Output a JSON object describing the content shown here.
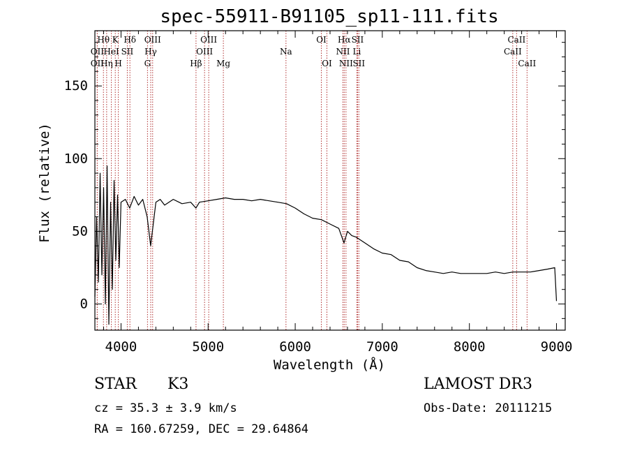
{
  "chart_data": {
    "type": "line",
    "title": "spec-55911-B91105_sp11-111.fits",
    "xlabel": "Wavelength (Å)",
    "ylabel": "Flux (relative)",
    "xlim": [
      3700,
      9100
    ],
    "ylim": [
      -18,
      188
    ],
    "xticks": [
      4000,
      5000,
      6000,
      7000,
      8000,
      9000
    ],
    "yticks": [
      0,
      50,
      100,
      150
    ],
    "spectrum": {
      "name": "flux",
      "x": [
        3700,
        3720,
        3740,
        3760,
        3780,
        3800,
        3820,
        3840,
        3860,
        3880,
        3900,
        3920,
        3940,
        3960,
        3980,
        4000,
        4050,
        4100,
        4150,
        4200,
        4250,
        4300,
        4340,
        4400,
        4450,
        4500,
        4600,
        4700,
        4800,
        4860,
        4900,
        5000,
        5100,
        5200,
        5300,
        5400,
        5500,
        5600,
        5700,
        5800,
        5900,
        6000,
        6100,
        6200,
        6300,
        6400,
        6500,
        6560,
        6600,
        6650,
        6700,
        6800,
        6900,
        7000,
        7100,
        7200,
        7300,
        7400,
        7500,
        7600,
        7700,
        7800,
        7900,
        8000,
        8100,
        8200,
        8300,
        8400,
        8500,
        8600,
        8700,
        8800,
        8900,
        8980,
        9000
      ],
      "y": [
        5,
        60,
        15,
        90,
        20,
        80,
        0,
        95,
        -14,
        70,
        10,
        85,
        30,
        75,
        25,
        70,
        72,
        66,
        74,
        68,
        72,
        60,
        40,
        70,
        72,
        68,
        72,
        69,
        70,
        66,
        70,
        71,
        72,
        73,
        72,
        72,
        71,
        72,
        71,
        70,
        69,
        66,
        62,
        59,
        58,
        55,
        52,
        42,
        50,
        47,
        46,
        42,
        38,
        35,
        34,
        30,
        29,
        25,
        23,
        22,
        21,
        22,
        21,
        21,
        21,
        21,
        22,
        21,
        22,
        22,
        22,
        23,
        24,
        25,
        2
      ]
    },
    "spectral_lines": [
      {
        "label": "Hθ",
        "wavelength": 3798,
        "row": 0
      },
      {
        "label": "OII",
        "wavelength": 3727,
        "row": 1
      },
      {
        "label": "OII",
        "wavelength": 3727,
        "row": 2
      },
      {
        "label": "Hη",
        "wavelength": 3835,
        "row": 2
      },
      {
        "label": "HeI",
        "wavelength": 3889,
        "row": 1
      },
      {
        "label": "K",
        "wavelength": 3934,
        "row": 0
      },
      {
        "label": "H",
        "wavelength": 3969,
        "row": 2
      },
      {
        "label": "SII",
        "wavelength": 4072,
        "row": 1
      },
      {
        "label": "Hδ",
        "wavelength": 4102,
        "row": 0
      },
      {
        "label": "OIII",
        "wavelength": 4363,
        "row": 0
      },
      {
        "label": "Hγ",
        "wavelength": 4341,
        "row": 1
      },
      {
        "label": "G",
        "wavelength": 4304,
        "row": 2
      },
      {
        "label": "Hβ",
        "wavelength": 4861,
        "row": 2
      },
      {
        "label": "OIII",
        "wavelength": 5007,
        "row": 0
      },
      {
        "label": "OIII",
        "wavelength": 4959,
        "row": 1
      },
      {
        "label": "Mg",
        "wavelength": 5175,
        "row": 2
      },
      {
        "label": "Na",
        "wavelength": 5894,
        "row": 1
      },
      {
        "label": "OI",
        "wavelength": 6300,
        "row": 0
      },
      {
        "label": "OI",
        "wavelength": 6364,
        "row": 2
      },
      {
        "label": "Hα",
        "wavelength": 6563,
        "row": 0
      },
      {
        "label": "NII",
        "wavelength": 6548,
        "row": 1
      },
      {
        "label": "NII",
        "wavelength": 6583,
        "row": 2
      },
      {
        "label": "SII",
        "wavelength": 6716,
        "row": 0
      },
      {
        "label": "Li",
        "wavelength": 6708,
        "row": 1
      },
      {
        "label": "SII",
        "wavelength": 6731,
        "row": 2
      },
      {
        "label": "CaII",
        "wavelength": 8542,
        "row": 0
      },
      {
        "label": "CaII",
        "wavelength": 8498,
        "row": 1
      },
      {
        "label": "CaII",
        "wavelength": 8662,
        "row": 2
      }
    ]
  },
  "info": {
    "class": "STAR",
    "subclass": "K3",
    "survey": "LAMOST DR3",
    "redshift": "cz = 35.3 ± 3.9 km/s",
    "obs_date": "Obs-Date: 20111215",
    "coords": "RA = 160.67259, DEC =  29.64864"
  },
  "colors": {
    "line": "#000000",
    "marker": "#b03030",
    "axis": "#000000"
  }
}
